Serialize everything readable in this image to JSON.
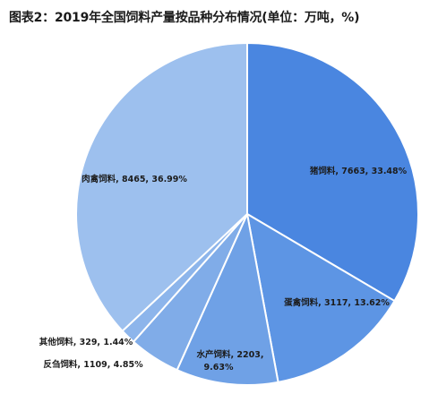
{
  "title": "图表2：2019年全国饲料产量按品种分布情况(单位：万吨，%)",
  "chart_data": {
    "type": "pie",
    "start_angle_deg": 0,
    "direction": "clockwise",
    "slices": [
      {
        "name": "猪饲料",
        "value": 7663,
        "percent": "33.48%",
        "color": "#4a86e0",
        "label": "猪饲料, 7663, 33.48%"
      },
      {
        "name": "蛋禽饲料",
        "value": 3117,
        "percent": "13.62%",
        "color": "#5d95e4",
        "label": "蛋禽饲料, 3117, 13.62%"
      },
      {
        "name": "水产饲料",
        "value": 2203,
        "percent": "9.63%",
        "color": "#6fa1e6",
        "label": "水产饲料, 2203,",
        "label2": "9.63%"
      },
      {
        "name": "反刍饲料",
        "value": 1109,
        "percent": "4.85%",
        "color": "#80ace8",
        "label": "反刍饲料, 1109, 4.85%"
      },
      {
        "name": "其他饲料",
        "value": 329,
        "percent": "1.44%",
        "color": "#8db5eb",
        "label": "其他饲料, 329, 1.44%"
      },
      {
        "name": "肉禽饲料",
        "value": 8465,
        "percent": "36.99%",
        "color": "#9dc0ee",
        "label": "肉禽饲料, 8465, 36.99%"
      }
    ]
  }
}
